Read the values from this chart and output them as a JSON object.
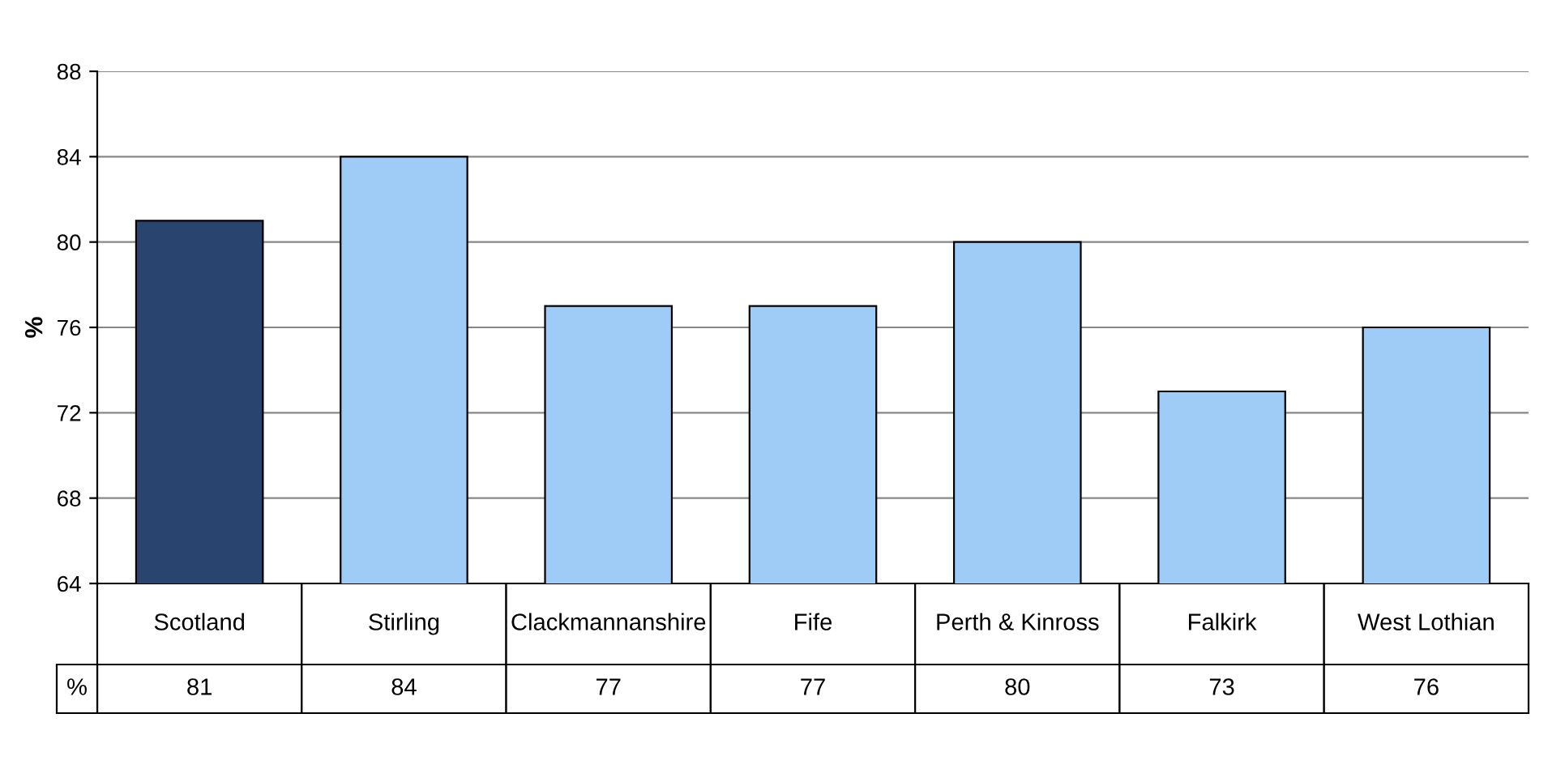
{
  "chart_data": {
    "type": "bar",
    "ylabel": "%",
    "categories": [
      "Scotland",
      "Stirling",
      "Clackmannanshire",
      "Fife",
      "Perth & Kinross",
      "Falkirk",
      "West Lothian"
    ],
    "series": [
      {
        "name": "%",
        "colors": [
          "#2a4470",
          "#9fcbf7",
          "#9fcbf7",
          "#9fcbf7",
          "#9fcbf7",
          "#9fcbf7",
          "#9fcbf7"
        ],
        "values": [
          81,
          84,
          77,
          77,
          80,
          73,
          76
        ]
      }
    ],
    "ylim": [
      64,
      88
    ],
    "yticks": [
      64,
      68,
      72,
      76,
      80,
      84,
      88
    ],
    "grid": "y",
    "data_labels": true,
    "legend": false
  }
}
